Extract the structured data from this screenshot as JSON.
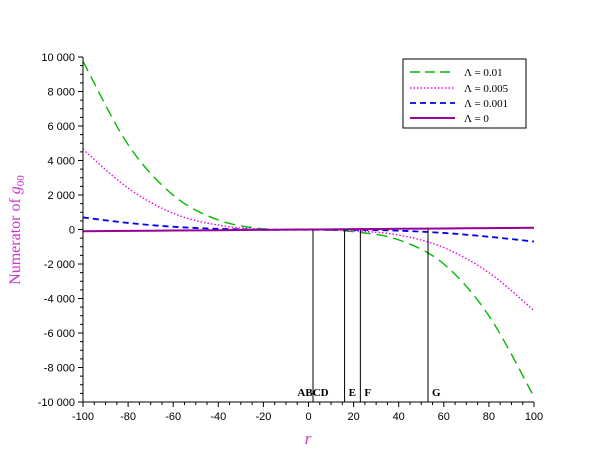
{
  "chart_data": {
    "type": "line",
    "title": "",
    "xlabel": "r",
    "ylabel_prefix": "Numerator of ",
    "ylabel_symbol": "g",
    "ylabel_subscript": "00",
    "xlim": [
      -100,
      100
    ],
    "ylim": [
      -10000,
      10000
    ],
    "x_ticks": [
      -100,
      -80,
      -60,
      -40,
      -20,
      0,
      20,
      40,
      60,
      80,
      100
    ],
    "x_tick_labels": [
      "-100",
      "-80",
      "-60",
      "-40",
      "-20",
      "0",
      "20",
      "40",
      "60",
      "80",
      "100"
    ],
    "y_ticks": [
      -10000,
      -8000,
      -6000,
      -4000,
      -2000,
      0,
      2000,
      4000,
      6000,
      8000,
      10000
    ],
    "y_tick_labels": [
      "-10 000",
      "-8 000",
      "-6 000",
      "-4 000",
      "-2 000",
      "0",
      "2 000",
      "4 000",
      "6 000",
      "8 000",
      "10 000"
    ],
    "grid": false,
    "legend_position": "top-right",
    "legend_labels": [
      "Λ = 0.01",
      "Λ = 0.005",
      "Λ = 0.001",
      "Λ = 0"
    ],
    "series": [
      {
        "name": "Λ = 0.01",
        "color": "#00bb00",
        "dash": "long-dash",
        "x": [
          -100,
          -80,
          -60,
          -40,
          -20,
          0,
          20,
          40,
          60,
          80,
          100
        ],
        "y": [
          9750,
          4920,
          1990,
          550,
          40,
          -10,
          -130,
          -600,
          -2000,
          -5000,
          -9700
        ]
      },
      {
        "name": "Λ = 0.005",
        "color": "#ee00ee",
        "dash": "dotted",
        "x": [
          -100,
          -80,
          -60,
          -40,
          -20,
          0,
          20,
          40,
          60,
          80,
          100
        ],
        "y": [
          4650,
          2400,
          940,
          250,
          10,
          -10,
          -80,
          -320,
          -1050,
          -2500,
          -4700
        ]
      },
      {
        "name": "Λ = 0.001",
        "color": "#0000ee",
        "dash": "short-dash",
        "x": [
          -100,
          -80,
          -60,
          -40,
          -20,
          0,
          20,
          40,
          60,
          80,
          100
        ],
        "y": [
          700,
          380,
          160,
          40,
          -10,
          -10,
          -20,
          -70,
          -200,
          -420,
          -700
        ]
      },
      {
        "name": "Λ = 0",
        "color": "#990099",
        "dash": "solid",
        "x": [
          -100,
          -80,
          -60,
          -40,
          -20,
          0,
          20,
          40,
          60,
          80,
          100
        ],
        "y": [
          -100,
          -80,
          -60,
          -40,
          -20,
          0,
          20,
          40,
          60,
          80,
          100
        ]
      }
    ],
    "vertical_markers": [
      {
        "label": "ABCD",
        "x": 2
      },
      {
        "label": "E",
        "x": 16
      },
      {
        "label": "F",
        "x": 23
      },
      {
        "label": "G",
        "x": 53
      }
    ]
  }
}
